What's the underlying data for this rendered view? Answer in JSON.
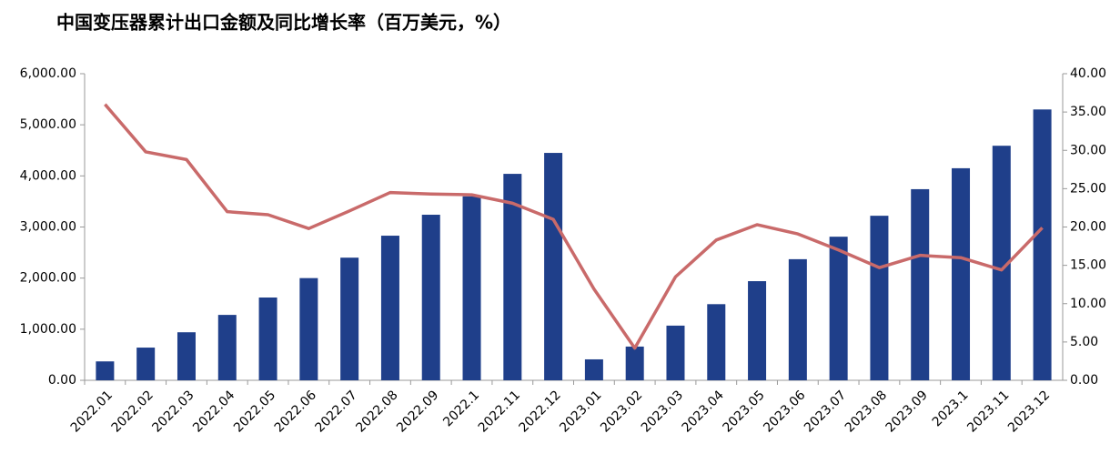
{
  "chart_data": {
    "type": "bar-line",
    "title": "中国变压器累计出口金额及同比增长率（百万美元，%）",
    "categories": [
      "2022.01",
      "2022.02",
      "2022.03",
      "2022.04",
      "2022.05",
      "2022.06",
      "2022.07",
      "2022.08",
      "2022.09",
      "2022.1",
      "2022.11",
      "2022.12",
      "2023.01",
      "2023.02",
      "2023.03",
      "2023.04",
      "2023.05",
      "2023.06",
      "2023.07",
      "2023.08",
      "2023.09",
      "2023.1",
      "2023.11",
      "2023.12"
    ],
    "series": [
      {
        "type": "bar",
        "color": "#1f3f8a",
        "values": [
          370,
          640,
          940,
          1280,
          1620,
          2000,
          2400,
          2830,
          3240,
          3600,
          4040,
          4450,
          410,
          660,
          1070,
          1490,
          1940,
          2370,
          2810,
          3220,
          3740,
          4150,
          4590,
          5300
        ]
      },
      {
        "type": "line",
        "axis": "y2",
        "color": "#c96a6a",
        "values": [
          36.0,
          29.8,
          28.8,
          22.0,
          21.6,
          19.8,
          22.1,
          24.5,
          24.3,
          24.2,
          23.1,
          21.0,
          11.9,
          4.2,
          13.5,
          18.3,
          20.3,
          19.1,
          17.0,
          14.7,
          16.3,
          16.0,
          14.4,
          19.9
        ]
      }
    ],
    "ylim": [
      0,
      6000
    ],
    "yticks": [
      {
        "value": 0,
        "label": "0.00"
      },
      {
        "value": 1000,
        "label": "1,000.00"
      },
      {
        "value": 2000,
        "label": "2,000.00"
      },
      {
        "value": 3000,
        "label": "3,000.00"
      },
      {
        "value": 4000,
        "label": "4,000.00"
      },
      {
        "value": 5000,
        "label": "5,000.00"
      },
      {
        "value": 6000,
        "label": "6,000.00"
      }
    ],
    "y2lim": [
      0,
      40
    ],
    "y2ticks": [
      {
        "value": 0,
        "label": "0.00"
      },
      {
        "value": 5,
        "label": "5.00"
      },
      {
        "value": 10,
        "label": "10.00"
      },
      {
        "value": 15,
        "label": "15.00"
      },
      {
        "value": 20,
        "label": "20.00"
      },
      {
        "value": 25,
        "label": "25.00"
      },
      {
        "value": 30,
        "label": "30.00"
      },
      {
        "value": 35,
        "label": "35.00"
      },
      {
        "value": 40,
        "label": "40.00"
      }
    ],
    "grid": false
  }
}
